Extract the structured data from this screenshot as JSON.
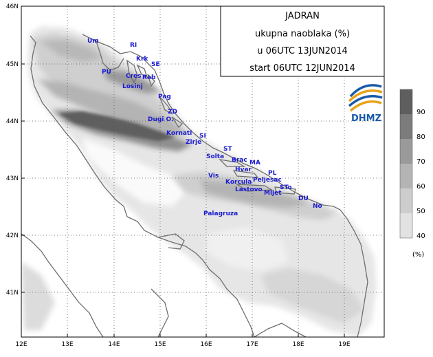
{
  "title_box": {
    "line1": "JADRAN",
    "line2": "ukupna naoblaka (%)",
    "line3": "u 06UTC 13JUN2014",
    "line4": "start 06UTC 12JUN2014"
  },
  "logo": {
    "text": "DHMZ"
  },
  "lat_labels": [
    "46N",
    "45N",
    "44N",
    "43N",
    "42N",
    "41N"
  ],
  "lon_labels": [
    "12E",
    "13E",
    "14E",
    "15E",
    "16E",
    "17E",
    "18E",
    "19E"
  ],
  "colorbar": {
    "labels": [
      "90",
      "80",
      "70",
      "60",
      "50",
      "40"
    ],
    "unit": "(%)",
    "colors": [
      "#5e5e5e",
      "#7c7c7c",
      "#9a9a9a",
      "#b4b4b4",
      "#cdcdcd",
      "#e2e2e2"
    ]
  },
  "places": [
    {
      "name": "Um"
    },
    {
      "name": "RI"
    },
    {
      "name": "Krk"
    },
    {
      "name": "SE"
    },
    {
      "name": "PU"
    },
    {
      "name": "Cres"
    },
    {
      "name": "Rab"
    },
    {
      "name": "Losinj"
    },
    {
      "name": "Pag"
    },
    {
      "name": "ZD"
    },
    {
      "name": "Dugi O."
    },
    {
      "name": "Kornati"
    },
    {
      "name": "SI"
    },
    {
      "name": "Zirje"
    },
    {
      "name": "ST"
    },
    {
      "name": "Solta"
    },
    {
      "name": "Brac"
    },
    {
      "name": "MA"
    },
    {
      "name": "Hvar"
    },
    {
      "name": "PL"
    },
    {
      "name": "Vis"
    },
    {
      "name": "Korcula"
    },
    {
      "name": "Peljesac"
    },
    {
      "name": "Lastovo"
    },
    {
      "name": "STo"
    },
    {
      "name": "Mljet"
    },
    {
      "name": "DU"
    },
    {
      "name": "No"
    },
    {
      "name": "Palagruza"
    }
  ]
}
